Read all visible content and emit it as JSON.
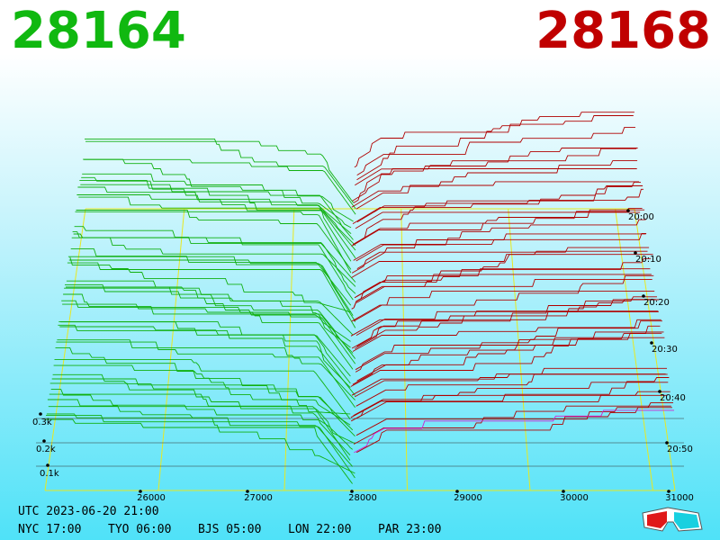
{
  "header": {
    "bid": "28164",
    "ask": "28168"
  },
  "price_axis": [
    "26000",
    "27000",
    "28000",
    "29000",
    "30000",
    "31000"
  ],
  "volume_axis": [
    "0.3k",
    "0.2k",
    "0.1k"
  ],
  "time_axis": [
    "20:00",
    "20:10",
    "20:20",
    "20:30",
    "20:40",
    "20:50"
  ],
  "footer": {
    "utc": "UTC 2023-06-20 21:00",
    "zones": [
      "NYC 17:00",
      "TYO 06:00",
      "BJS 05:00",
      "LON 22:00",
      "PAR 23:00"
    ]
  }
}
